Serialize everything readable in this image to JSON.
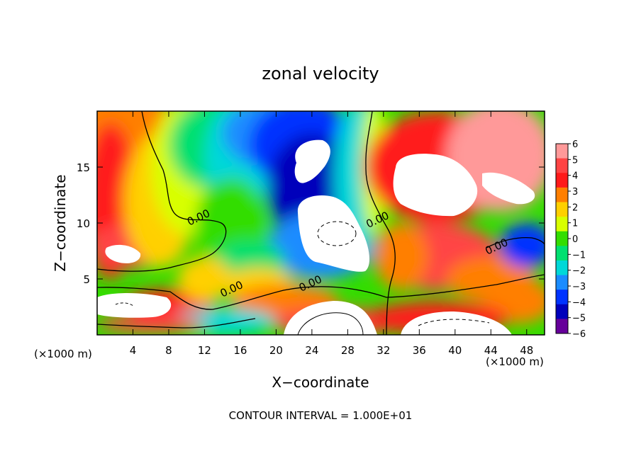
{
  "chart_data": {
    "type": "heatmap",
    "title": "zonal velocity",
    "xlabel": "X−coordinate",
    "ylabel": "Z−coordinate",
    "x_unit_left": "(×1000 m)",
    "x_unit_right": "(×1000 m)",
    "xlim": [
      0,
      50
    ],
    "ylim": [
      0,
      20
    ],
    "x_ticks": [
      4,
      8,
      12,
      16,
      20,
      24,
      28,
      32,
      36,
      40,
      44,
      48
    ],
    "y_ticks": [
      5,
      10,
      15
    ],
    "colorbar": {
      "min": -6,
      "max": 6,
      "ticks": [
        "6",
        "5",
        "4",
        "3",
        "2",
        "1",
        "0",
        "−1",
        "−2",
        "−3",
        "−4",
        "−5",
        "−6"
      ],
      "colors": [
        "#ff9999",
        "#ff4444",
        "#ff1a1a",
        "#ff7f00",
        "#ffd000",
        "#d8ff00",
        "#33dd00",
        "#00e070",
        "#00d8d8",
        "#1a8cff",
        "#0033ff",
        "#0000bb",
        "#66009a"
      ]
    },
    "contour_labels": [
      {
        "text": "0.00",
        "x": 11.5,
        "y": 10.2
      },
      {
        "text": "0.00",
        "x": 31.5,
        "y": 10.0
      },
      {
        "text": "0.00",
        "x": 44.8,
        "y": 7.6
      },
      {
        "text": "0.00",
        "x": 15.2,
        "y": 3.8
      },
      {
        "text": "0.00",
        "x": 24.0,
        "y": 4.3
      }
    ],
    "footer": "CONTOUR INTERVAL = 1.000E+01"
  }
}
